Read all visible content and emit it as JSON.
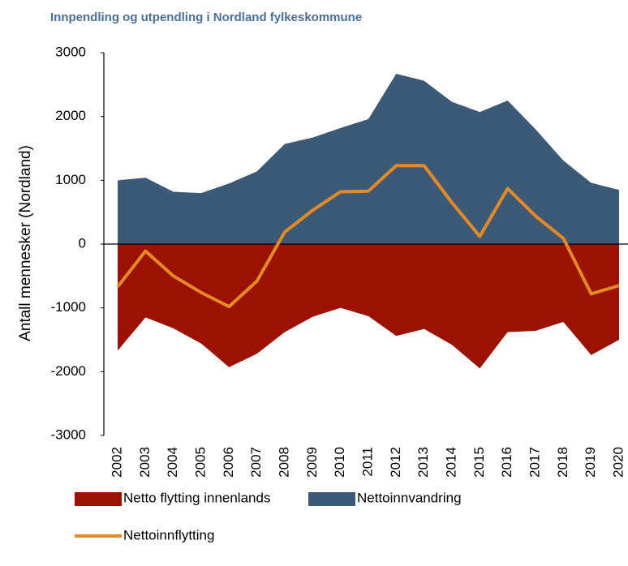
{
  "chart_data": {
    "type": "area",
    "title": "Innpendling og utpendling i Nordland fylkeskommune",
    "ylabel": "Antall mennesker (Nordland)",
    "categories": [
      "2002",
      "2003",
      "2004",
      "2005",
      "2006",
      "2007",
      "2008",
      "2009",
      "2010",
      "2011",
      "2012",
      "2013",
      "2014",
      "2015",
      "2016",
      "2017",
      "2018",
      "2019",
      "2020"
    ],
    "series": [
      {
        "name": "Netto flytting innenlands",
        "color": "#9b1300",
        "type": "area",
        "values": [
          -1670,
          -1150,
          -1320,
          -1560,
          -1930,
          -1720,
          -1380,
          -1140,
          -1000,
          -1130,
          -1440,
          -1330,
          -1580,
          -1950,
          -1380,
          -1360,
          -1220,
          -1740,
          -1500
        ]
      },
      {
        "name": "Nettoinnvandring",
        "color": "#3c5a78",
        "type": "area",
        "values": [
          1000,
          1040,
          820,
          800,
          950,
          1140,
          1570,
          1670,
          1820,
          1960,
          2670,
          2560,
          2230,
          2070,
          2250,
          1800,
          1310,
          960,
          850
        ]
      },
      {
        "name": "Nettoinnflytting",
        "color": "#e48a24",
        "type": "line",
        "values": [
          -670,
          -110,
          -500,
          -760,
          -980,
          -580,
          190,
          530,
          820,
          830,
          1230,
          1230,
          650,
          120,
          870,
          440,
          90,
          -780,
          -650
        ]
      }
    ],
    "ylim": [
      -3000,
      3000
    ],
    "yticks": [
      -3000,
      -2000,
      -1000,
      0,
      1000,
      2000,
      3000
    ]
  }
}
